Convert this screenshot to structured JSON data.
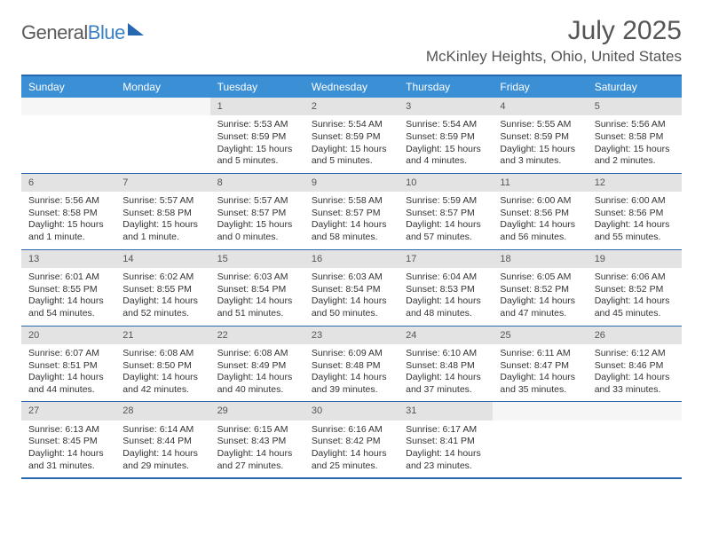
{
  "logo": {
    "text1": "General",
    "text2": "Blue"
  },
  "title": "July 2025",
  "location": "McKinley Heights, Ohio, United States",
  "colors": {
    "header_bg": "#3b8fd4",
    "border": "#2868b0",
    "daynum_bg": "#e3e3e3",
    "text": "#333333"
  },
  "day_names": [
    "Sunday",
    "Monday",
    "Tuesday",
    "Wednesday",
    "Thursday",
    "Friday",
    "Saturday"
  ],
  "weeks": [
    [
      {
        "n": "",
        "lines": []
      },
      {
        "n": "",
        "lines": []
      },
      {
        "n": "1",
        "lines": [
          "Sunrise: 5:53 AM",
          "Sunset: 8:59 PM",
          "Daylight: 15 hours and 5 minutes."
        ]
      },
      {
        "n": "2",
        "lines": [
          "Sunrise: 5:54 AM",
          "Sunset: 8:59 PM",
          "Daylight: 15 hours and 5 minutes."
        ]
      },
      {
        "n": "3",
        "lines": [
          "Sunrise: 5:54 AM",
          "Sunset: 8:59 PM",
          "Daylight: 15 hours and 4 minutes."
        ]
      },
      {
        "n": "4",
        "lines": [
          "Sunrise: 5:55 AM",
          "Sunset: 8:59 PM",
          "Daylight: 15 hours and 3 minutes."
        ]
      },
      {
        "n": "5",
        "lines": [
          "Sunrise: 5:56 AM",
          "Sunset: 8:58 PM",
          "Daylight: 15 hours and 2 minutes."
        ]
      }
    ],
    [
      {
        "n": "6",
        "lines": [
          "Sunrise: 5:56 AM",
          "Sunset: 8:58 PM",
          "Daylight: 15 hours and 1 minute."
        ]
      },
      {
        "n": "7",
        "lines": [
          "Sunrise: 5:57 AM",
          "Sunset: 8:58 PM",
          "Daylight: 15 hours and 1 minute."
        ]
      },
      {
        "n": "8",
        "lines": [
          "Sunrise: 5:57 AM",
          "Sunset: 8:57 PM",
          "Daylight: 15 hours and 0 minutes."
        ]
      },
      {
        "n": "9",
        "lines": [
          "Sunrise: 5:58 AM",
          "Sunset: 8:57 PM",
          "Daylight: 14 hours and 58 minutes."
        ]
      },
      {
        "n": "10",
        "lines": [
          "Sunrise: 5:59 AM",
          "Sunset: 8:57 PM",
          "Daylight: 14 hours and 57 minutes."
        ]
      },
      {
        "n": "11",
        "lines": [
          "Sunrise: 6:00 AM",
          "Sunset: 8:56 PM",
          "Daylight: 14 hours and 56 minutes."
        ]
      },
      {
        "n": "12",
        "lines": [
          "Sunrise: 6:00 AM",
          "Sunset: 8:56 PM",
          "Daylight: 14 hours and 55 minutes."
        ]
      }
    ],
    [
      {
        "n": "13",
        "lines": [
          "Sunrise: 6:01 AM",
          "Sunset: 8:55 PM",
          "Daylight: 14 hours and 54 minutes."
        ]
      },
      {
        "n": "14",
        "lines": [
          "Sunrise: 6:02 AM",
          "Sunset: 8:55 PM",
          "Daylight: 14 hours and 52 minutes."
        ]
      },
      {
        "n": "15",
        "lines": [
          "Sunrise: 6:03 AM",
          "Sunset: 8:54 PM",
          "Daylight: 14 hours and 51 minutes."
        ]
      },
      {
        "n": "16",
        "lines": [
          "Sunrise: 6:03 AM",
          "Sunset: 8:54 PM",
          "Daylight: 14 hours and 50 minutes."
        ]
      },
      {
        "n": "17",
        "lines": [
          "Sunrise: 6:04 AM",
          "Sunset: 8:53 PM",
          "Daylight: 14 hours and 48 minutes."
        ]
      },
      {
        "n": "18",
        "lines": [
          "Sunrise: 6:05 AM",
          "Sunset: 8:52 PM",
          "Daylight: 14 hours and 47 minutes."
        ]
      },
      {
        "n": "19",
        "lines": [
          "Sunrise: 6:06 AM",
          "Sunset: 8:52 PM",
          "Daylight: 14 hours and 45 minutes."
        ]
      }
    ],
    [
      {
        "n": "20",
        "lines": [
          "Sunrise: 6:07 AM",
          "Sunset: 8:51 PM",
          "Daylight: 14 hours and 44 minutes."
        ]
      },
      {
        "n": "21",
        "lines": [
          "Sunrise: 6:08 AM",
          "Sunset: 8:50 PM",
          "Daylight: 14 hours and 42 minutes."
        ]
      },
      {
        "n": "22",
        "lines": [
          "Sunrise: 6:08 AM",
          "Sunset: 8:49 PM",
          "Daylight: 14 hours and 40 minutes."
        ]
      },
      {
        "n": "23",
        "lines": [
          "Sunrise: 6:09 AM",
          "Sunset: 8:48 PM",
          "Daylight: 14 hours and 39 minutes."
        ]
      },
      {
        "n": "24",
        "lines": [
          "Sunrise: 6:10 AM",
          "Sunset: 8:48 PM",
          "Daylight: 14 hours and 37 minutes."
        ]
      },
      {
        "n": "25",
        "lines": [
          "Sunrise: 6:11 AM",
          "Sunset: 8:47 PM",
          "Daylight: 14 hours and 35 minutes."
        ]
      },
      {
        "n": "26",
        "lines": [
          "Sunrise: 6:12 AM",
          "Sunset: 8:46 PM",
          "Daylight: 14 hours and 33 minutes."
        ]
      }
    ],
    [
      {
        "n": "27",
        "lines": [
          "Sunrise: 6:13 AM",
          "Sunset: 8:45 PM",
          "Daylight: 14 hours and 31 minutes."
        ]
      },
      {
        "n": "28",
        "lines": [
          "Sunrise: 6:14 AM",
          "Sunset: 8:44 PM",
          "Daylight: 14 hours and 29 minutes."
        ]
      },
      {
        "n": "29",
        "lines": [
          "Sunrise: 6:15 AM",
          "Sunset: 8:43 PM",
          "Daylight: 14 hours and 27 minutes."
        ]
      },
      {
        "n": "30",
        "lines": [
          "Sunrise: 6:16 AM",
          "Sunset: 8:42 PM",
          "Daylight: 14 hours and 25 minutes."
        ]
      },
      {
        "n": "31",
        "lines": [
          "Sunrise: 6:17 AM",
          "Sunset: 8:41 PM",
          "Daylight: 14 hours and 23 minutes."
        ]
      },
      {
        "n": "",
        "lines": []
      },
      {
        "n": "",
        "lines": []
      }
    ]
  ]
}
